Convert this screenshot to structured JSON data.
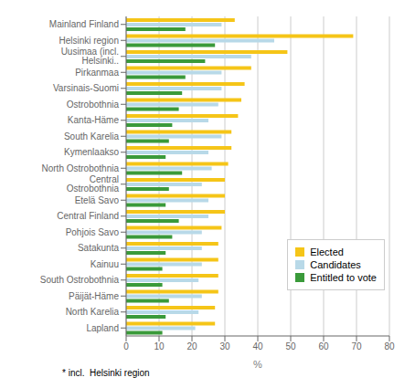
{
  "chart_data": {
    "type": "bar",
    "orientation": "horizontal",
    "categories": [
      "Mainland Finland",
      "Helsinki region",
      "Uusimaa (incl. Helsinki..",
      "Pirkanmaa",
      "Varsinais-Suomi",
      "Ostrobothnia",
      "Kanta-Häme",
      "South Karelia",
      "Kymenlaakso",
      "North Ostrobothnia",
      "Central Ostrobothnia",
      "Etelä Savo",
      "Central Finland",
      "Pohjois Savo",
      "Satakunta",
      "Kainuu",
      "South Ostrobothnia",
      "Päijät-Häme",
      "North Karelia",
      "Lapland"
    ],
    "series": [
      {
        "name": "Elected",
        "color": "#f5c518",
        "values": [
          33,
          69,
          49,
          38,
          36,
          35,
          34,
          32,
          32,
          31,
          30,
          30,
          30,
          29,
          28,
          28,
          28,
          28,
          27,
          27
        ]
      },
      {
        "name": "Candidates",
        "color": "#b8d9e8",
        "values": [
          29,
          45,
          38,
          29,
          29,
          28,
          25,
          29,
          25,
          26,
          23,
          25,
          25,
          23,
          23,
          23,
          22,
          23,
          22,
          21
        ]
      },
      {
        "name": "Entitled to vote",
        "color": "#3a9a3a",
        "values": [
          18,
          27,
          24,
          18,
          17,
          16,
          14,
          13,
          12,
          17,
          13,
          12,
          16,
          14,
          12,
          11,
          11,
          13,
          12,
          11
        ]
      }
    ],
    "xlabel": "%",
    "annotations": [
      "* incl.  Helsinki region"
    ],
    "xlim": [
      0,
      80
    ],
    "xticks": [
      0,
      10,
      20,
      30,
      40,
      50,
      60,
      70,
      80
    ],
    "grid": true,
    "legend": "lower right"
  }
}
